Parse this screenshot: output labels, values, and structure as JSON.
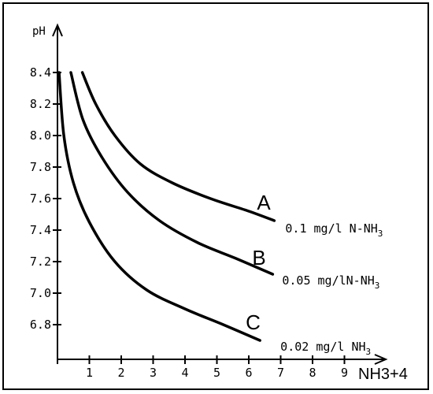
{
  "chart_data": {
    "type": "line",
    "title": "",
    "ylabel": "pH",
    "xlabel": "NH3+4",
    "xlim": [
      0,
      10
    ],
    "ylim": [
      6.6,
      8.6
    ],
    "x_ticks": [
      1,
      2,
      3,
      4,
      5,
      6,
      7,
      8,
      9
    ],
    "x_tick_labels": [
      "1",
      "2",
      "3",
      "4",
      "5",
      "6",
      "7",
      "8",
      "9"
    ],
    "y_ticks": [
      6.8,
      7.0,
      7.2,
      7.4,
      7.6,
      7.8,
      8.0,
      8.2,
      8.4
    ],
    "y_tick_labels": [
      "6.8",
      "7.0",
      "7.2",
      "7.4",
      "7.6",
      "7.8",
      "8.0",
      "8.2",
      "8.4"
    ],
    "grid": false,
    "legend": "none",
    "series": [
      {
        "name": "A",
        "annotation": {
          "main": "0.1 mg/l N-NH",
          "sub": "3"
        },
        "x": [
          0.78,
          1.2,
          1.8,
          2.6,
          3.6,
          4.8,
          6.0,
          6.8
        ],
        "y": [
          8.4,
          8.2,
          8.0,
          7.82,
          7.7,
          7.6,
          7.52,
          7.46
        ]
      },
      {
        "name": "B",
        "annotation": {
          "main": "0.05 mg/lN-NH",
          "sub": "3"
        },
        "x": [
          0.42,
          0.8,
          1.4,
          2.2,
          3.2,
          4.4,
          5.6,
          6.75
        ],
        "y": [
          8.4,
          8.1,
          7.86,
          7.64,
          7.46,
          7.32,
          7.22,
          7.12
        ]
      },
      {
        "name": "C",
        "annotation": {
          "main": "0.02 mg/l NH",
          "sub": "3"
        },
        "x": [
          0.05,
          0.2,
          0.5,
          1.0,
          1.8,
          2.8,
          4.0,
          5.2,
          6.35
        ],
        "y": [
          8.4,
          8.0,
          7.7,
          7.45,
          7.2,
          7.02,
          6.9,
          6.8,
          6.7
        ]
      }
    ]
  }
}
